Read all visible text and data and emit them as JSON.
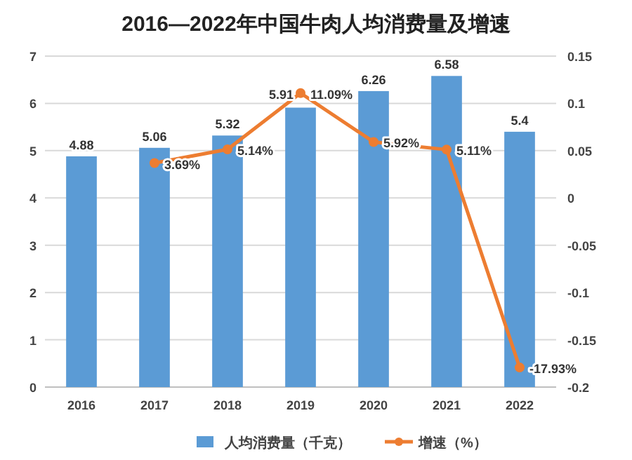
{
  "chart_data": {
    "type": "bar",
    "title": "2016—2022年中国牛肉人均消费量及增速",
    "categories": [
      "2016",
      "2017",
      "2018",
      "2019",
      "2020",
      "2021",
      "2022"
    ],
    "series": [
      {
        "name": "人均消费量（千克）",
        "color": "#5b9bd5",
        "values": [
          4.88,
          5.06,
          5.32,
          5.91,
          6.26,
          6.58,
          5.4
        ],
        "value_labels": [
          "4.88",
          "5.06",
          "5.32",
          "5.91",
          "6.26",
          "6.58",
          "5.4"
        ]
      },
      {
        "name": "增速（%）",
        "type": "line",
        "axis": "y2",
        "color": "#ed7d31",
        "values": [
          null,
          0.0369,
          0.0514,
          0.1109,
          0.0592,
          0.0511,
          -0.1793
        ],
        "value_labels": [
          null,
          "3.69%",
          "5.14%",
          "11.09%",
          "5.92%",
          "5.11%",
          "-17.93%"
        ]
      }
    ],
    "ylim": [
      0,
      7
    ],
    "yticks": [
      0,
      1,
      2,
      3,
      4,
      5,
      6,
      7
    ],
    "y2lim": [
      -0.2,
      0.15
    ],
    "y2ticks": [
      -0.2,
      -0.15,
      -0.1,
      -0.05,
      0,
      0.05,
      0.1,
      0.15
    ],
    "grid": "y",
    "legend": "bottom",
    "marker": "circle",
    "line_style": "solid"
  }
}
